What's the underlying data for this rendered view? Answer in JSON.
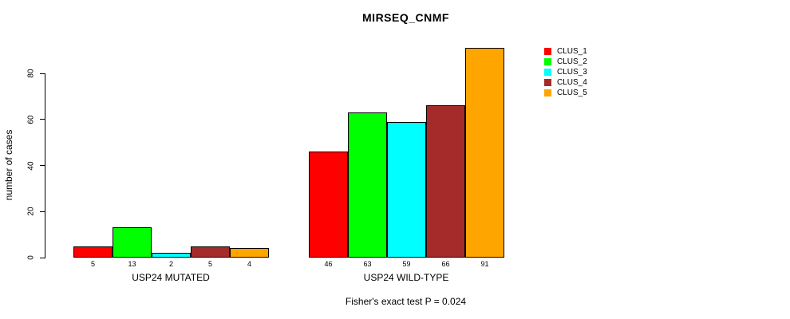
{
  "title": "MIRSEQ_CNMF",
  "chart_data": {
    "type": "bar",
    "title": "MIRSEQ_CNMF",
    "xlabel": "",
    "ylabel": "number of cases",
    "ylim": [
      0,
      91
    ],
    "yticks": [
      0,
      20,
      40,
      60,
      80
    ],
    "grid": false,
    "legend_position": "right-outside-top",
    "categories": [
      "USP24 MUTATED",
      "USP24 WILD-TYPE"
    ],
    "series": [
      {
        "name": "CLUS_1",
        "color": "#FF0000",
        "values": [
          5,
          46
        ]
      },
      {
        "name": "CLUS_2",
        "color": "#00FF00",
        "values": [
          13,
          63
        ]
      },
      {
        "name": "CLUS_3",
        "color": "#00FFFF",
        "values": [
          2,
          59
        ]
      },
      {
        "name": "CLUS_4",
        "color": "#A52A2A",
        "values": [
          5,
          66
        ]
      },
      {
        "name": "CLUS_5",
        "color": "#FFA500",
        "values": [
          4,
          91
        ]
      }
    ],
    "bar_value_labels_shown": true,
    "annotation": "Fisher's exact test P = 0.024",
    "axis_color": "#000000",
    "bar_border_color": "#000000"
  }
}
